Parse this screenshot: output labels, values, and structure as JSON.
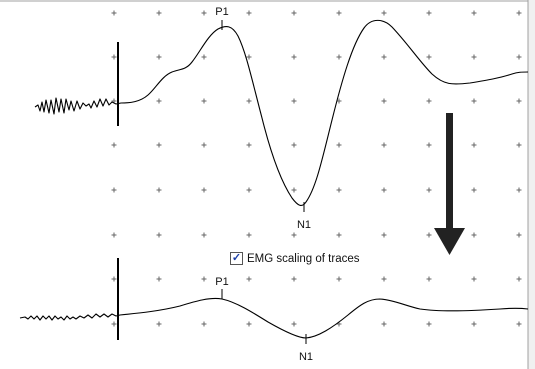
{
  "traces": {
    "upper": {
      "peak_label": "P1",
      "trough_label": "N1"
    },
    "lower": {
      "peak_label": "P1",
      "trough_label": "N1"
    }
  },
  "controls": {
    "emg_scaling": {
      "label": "EMG scaling of traces",
      "checked": true,
      "check_glyph": "✓"
    }
  },
  "icons": {
    "down_arrow": "arrow-down-icon",
    "grid_marker": "plus-marker-icon"
  },
  "colors": {
    "background": "#ffffff",
    "window_edge": "#f0f0f0",
    "trace": "#000000",
    "grid_marker": "#666666",
    "arrow": "#222222",
    "check": "#1c3fa8"
  }
}
